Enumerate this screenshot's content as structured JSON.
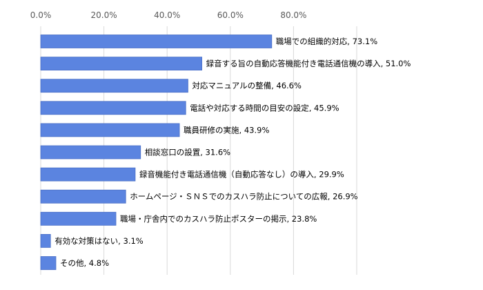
{
  "chart_data": {
    "type": "bar",
    "orientation": "horizontal",
    "x_ticks": [
      "0.0%",
      "20.0%",
      "40.0%",
      "60.0%",
      "80.0%"
    ],
    "xlim": [
      0,
      100
    ],
    "grid": true,
    "color": "#5b84e0",
    "categories": [
      "職場での組織的対応",
      "録音する旨の自動応答機能付き電話通信機の導入",
      "対応マニュアルの整備",
      "電話や対応する時間の目安の設定",
      "職員研修の実施",
      "相談窓口の設置",
      "録音機能付き電話通信機（自動応答なし）の導入",
      "ホームページ・ＳＮＳでのカスハラ防止についての広報",
      "職場・庁舎内でのカスハラ防止ポスターの掲示",
      "有効な対策はない",
      "その他"
    ],
    "values": [
      73.1,
      51.0,
      46.6,
      45.9,
      43.9,
      31.6,
      29.9,
      26.9,
      23.8,
      3.1,
      4.8
    ],
    "data_labels": [
      "職場での組織的対応, 73.1%",
      "録音する旨の自動応答機能付き電話通信機の導入, 51.0%",
      "対応マニュアルの整備, 46.6%",
      "電話や対応する時間の目安の設定, 45.9%",
      "職員研修の実施, 43.9%",
      "相談窓口の設置, 31.6%",
      "録音機能付き電話通信機（自動応答なし）の導入, 29.9%",
      "ホームページ・ＳＮＳでのカスハラ防止についての広報, 26.9%",
      "職場・庁舎内でのカスハラ防止ポスターの掲示, 23.8%",
      "有効な対策はない, 3.1%",
      "その他, 4.8%"
    ]
  }
}
